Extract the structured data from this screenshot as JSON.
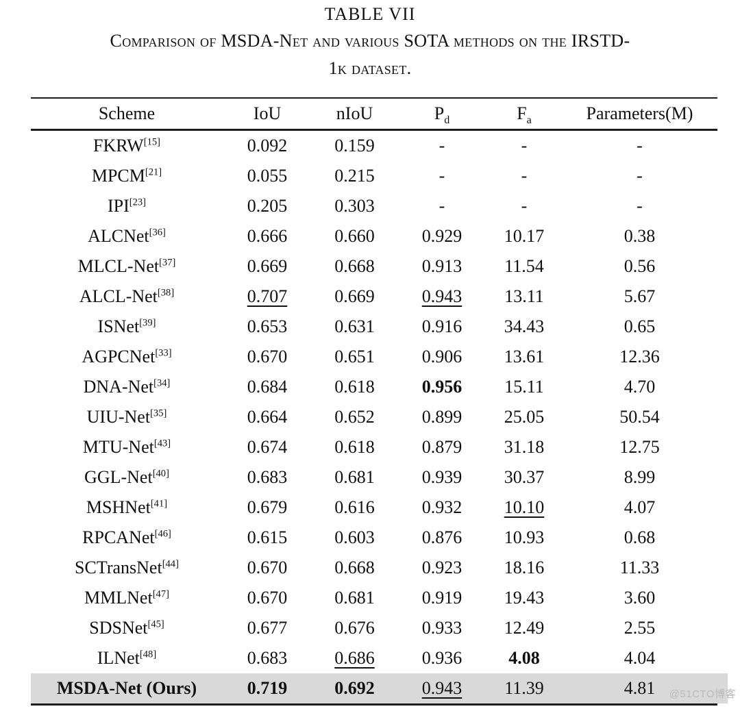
{
  "title": {
    "label": "TABLE VII",
    "caption_line1": "Comparison of MSDA-Net and various SOTA methods on the IRSTD-",
    "caption_line2": "1k dataset."
  },
  "table": {
    "header": {
      "scheme": "Scheme",
      "iou": "IoU",
      "niou": "nIoU",
      "pd_base": "P",
      "pd_sub": "d",
      "fa_base": "F",
      "fa_sub": "a",
      "params": "Parameters(M)"
    },
    "rows": [
      {
        "scheme": "FKRW",
        "ref": "[15]",
        "cells": [
          {
            "v": "0.092"
          },
          {
            "v": "0.159"
          },
          {
            "v": "-"
          },
          {
            "v": "-"
          },
          {
            "v": "-"
          }
        ]
      },
      {
        "scheme": "MPCM",
        "ref": "[21]",
        "cells": [
          {
            "v": "0.055"
          },
          {
            "v": "0.215"
          },
          {
            "v": "-"
          },
          {
            "v": "-"
          },
          {
            "v": "-"
          }
        ]
      },
      {
        "scheme": "IPI",
        "ref": "[23]",
        "cells": [
          {
            "v": "0.205"
          },
          {
            "v": "0.303"
          },
          {
            "v": "-"
          },
          {
            "v": "-"
          },
          {
            "v": "-"
          }
        ]
      },
      {
        "scheme": "ALCNet",
        "ref": "[36]",
        "cells": [
          {
            "v": "0.666"
          },
          {
            "v": "0.660"
          },
          {
            "v": "0.929"
          },
          {
            "v": "10.17"
          },
          {
            "v": "0.38"
          }
        ]
      },
      {
        "scheme": "MLCL-Net",
        "ref": "[37]",
        "cells": [
          {
            "v": "0.669"
          },
          {
            "v": "0.668"
          },
          {
            "v": "0.913"
          },
          {
            "v": "11.54"
          },
          {
            "v": "0.56"
          }
        ]
      },
      {
        "scheme": "ALCL-Net",
        "ref": "[38]",
        "cells": [
          {
            "v": "0.707",
            "u": true
          },
          {
            "v": "0.669"
          },
          {
            "v": "0.943",
            "u": true
          },
          {
            "v": "13.11"
          },
          {
            "v": "5.67"
          }
        ]
      },
      {
        "scheme": "ISNet",
        "ref": "[39]",
        "cells": [
          {
            "v": "0.653"
          },
          {
            "v": "0.631"
          },
          {
            "v": "0.916"
          },
          {
            "v": "34.43"
          },
          {
            "v": "0.65"
          }
        ]
      },
      {
        "scheme": "AGPCNet",
        "ref": "[33]",
        "cells": [
          {
            "v": "0.670"
          },
          {
            "v": "0.651"
          },
          {
            "v": "0.906"
          },
          {
            "v": "13.61"
          },
          {
            "v": "12.36"
          }
        ]
      },
      {
        "scheme": "DNA-Net",
        "ref": "[34]",
        "cells": [
          {
            "v": "0.684"
          },
          {
            "v": "0.618"
          },
          {
            "v": "0.956",
            "b": true
          },
          {
            "v": "15.11"
          },
          {
            "v": "4.70"
          }
        ]
      },
      {
        "scheme": "UIU-Net",
        "ref": "[35]",
        "cells": [
          {
            "v": "0.664"
          },
          {
            "v": "0.652"
          },
          {
            "v": "0.899"
          },
          {
            "v": "25.05"
          },
          {
            "v": "50.54"
          }
        ]
      },
      {
        "scheme": "MTU-Net",
        "ref": "[43]",
        "cells": [
          {
            "v": "0.674"
          },
          {
            "v": "0.618"
          },
          {
            "v": "0.879"
          },
          {
            "v": "31.18"
          },
          {
            "v": "12.75"
          }
        ]
      },
      {
        "scheme": "GGL-Net",
        "ref": "[40]",
        "cells": [
          {
            "v": "0.683"
          },
          {
            "v": "0.681"
          },
          {
            "v": "0.939"
          },
          {
            "v": "30.37"
          },
          {
            "v": "8.99"
          }
        ]
      },
      {
        "scheme": "MSHNet",
        "ref": "[41]",
        "cells": [
          {
            "v": "0.679"
          },
          {
            "v": "0.616"
          },
          {
            "v": "0.932"
          },
          {
            "v": "10.10",
            "u": true
          },
          {
            "v": "4.07"
          }
        ]
      },
      {
        "scheme": "RPCANet",
        "ref": "[46]",
        "cells": [
          {
            "v": "0.615"
          },
          {
            "v": "0.603"
          },
          {
            "v": "0.876"
          },
          {
            "v": "10.93"
          },
          {
            "v": "0.68"
          }
        ]
      },
      {
        "scheme": "SCTransNet",
        "ref": "[44]",
        "cells": [
          {
            "v": "0.670"
          },
          {
            "v": "0.668"
          },
          {
            "v": "0.923"
          },
          {
            "v": "18.16"
          },
          {
            "v": "11.33"
          }
        ]
      },
      {
        "scheme": "MMLNet",
        "ref": "[47]",
        "cells": [
          {
            "v": "0.670"
          },
          {
            "v": "0.681"
          },
          {
            "v": "0.919"
          },
          {
            "v": "19.43"
          },
          {
            "v": "3.60"
          }
        ]
      },
      {
        "scheme": "SDSNet",
        "ref": "[45]",
        "cells": [
          {
            "v": "0.677"
          },
          {
            "v": "0.676"
          },
          {
            "v": "0.933"
          },
          {
            "v": "12.49"
          },
          {
            "v": "2.55"
          }
        ]
      },
      {
        "scheme": "ILNet",
        "ref": "[48]",
        "cells": [
          {
            "v": "0.683"
          },
          {
            "v": "0.686",
            "u": true
          },
          {
            "v": "0.936"
          },
          {
            "v": "4.08",
            "b": true
          },
          {
            "v": "4.04"
          }
        ]
      },
      {
        "scheme": "MSDA-Net (Ours)",
        "ref": "",
        "bold": true,
        "highlight": true,
        "cells": [
          {
            "v": "0.719",
            "b": true
          },
          {
            "v": "0.692",
            "b": true
          },
          {
            "v": "0.943",
            "u": true
          },
          {
            "v": "11.39"
          },
          {
            "v": "4.81"
          }
        ]
      }
    ]
  },
  "watermark": {
    "text": "@51CTO博客"
  },
  "colors": {
    "highlight_row": "#d9d9d9",
    "rule": "#1c1c1c",
    "text": "#111111",
    "watermark": "#b9b9b9"
  }
}
